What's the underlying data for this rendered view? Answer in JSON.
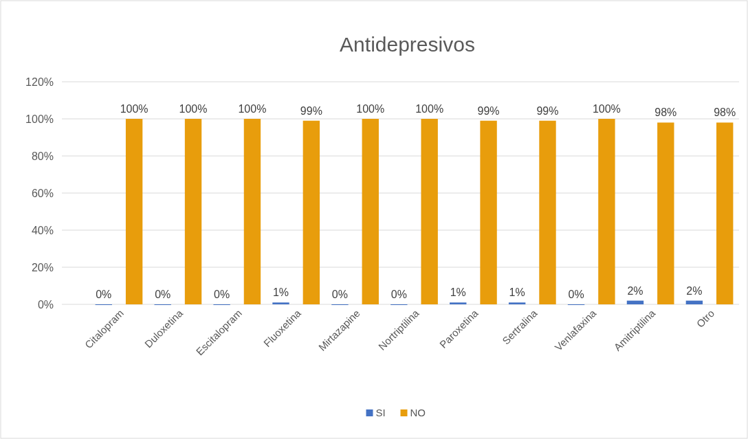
{
  "chart_data": {
    "type": "bar",
    "title": "Antidepresivos",
    "categories": [
      "Citalopram",
      "Duloxetina",
      "Escitalopram",
      "Fluoxetina",
      "Mirtazapine",
      "Nortriptilina",
      "Paroxetina",
      "Sertralina",
      "Venlafaxina",
      "Amitriptilina",
      "Otro"
    ],
    "series": [
      {
        "name": "SI",
        "color": "#4472c4",
        "values": [
          0,
          0,
          0,
          1,
          0,
          0,
          1,
          1,
          0,
          2,
          2
        ],
        "value_labels": [
          "0%",
          "0%",
          "0%",
          "1%",
          "0%",
          "0%",
          "1%",
          "1%",
          "0%",
          "2%",
          "2%"
        ]
      },
      {
        "name": "NO",
        "color": "#e89d0c",
        "values": [
          100,
          100,
          100,
          99,
          100,
          100,
          99,
          99,
          100,
          98,
          98
        ],
        "value_labels": [
          "100%",
          "100%",
          "100%",
          "99%",
          "100%",
          "100%",
          "99%",
          "99%",
          "100%",
          "98%",
          "98%"
        ]
      }
    ],
    "ylim": [
      0,
      120
    ],
    "yticks": [
      {
        "value": 0,
        "label": "0%"
      },
      {
        "value": 20,
        "label": "20%"
      },
      {
        "value": 40,
        "label": "40%"
      },
      {
        "value": 60,
        "label": "60%"
      },
      {
        "value": 80,
        "label": "80%"
      },
      {
        "value": 100,
        "label": "100%"
      },
      {
        "value": 120,
        "label": "120%"
      }
    ],
    "grid": "y",
    "legend": "bottom"
  }
}
